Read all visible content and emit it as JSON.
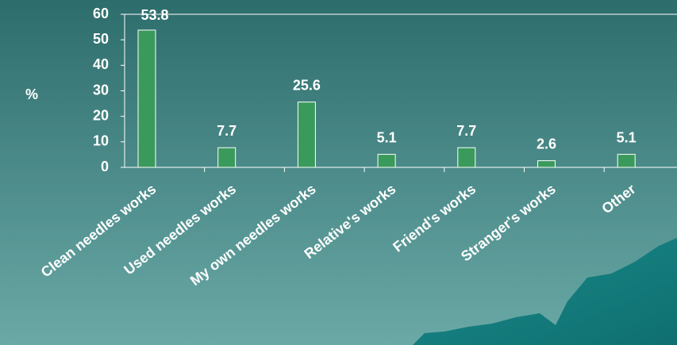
{
  "chart_data": {
    "type": "bar",
    "y_label": "%",
    "categories": [
      "Clean needles works",
      "Used needles works",
      "My own needles works",
      "Relative's works",
      "Friend's works",
      "Stranger's works",
      "Other"
    ],
    "values": [
      53.8,
      7.7,
      25.6,
      5.1,
      7.7,
      2.6,
      5.1
    ],
    "color": "#3a9a5c",
    "ylim": [
      0,
      60
    ],
    "yticks": [
      0,
      10,
      20,
      30,
      40,
      50,
      60
    ]
  }
}
